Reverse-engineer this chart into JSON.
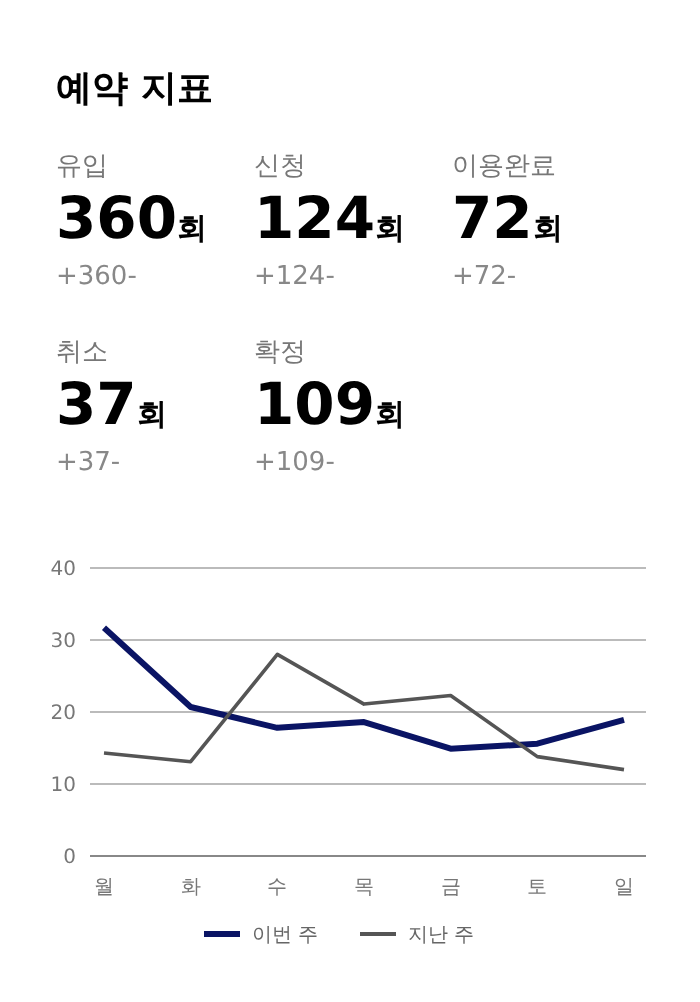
{
  "chart_data": [
    {
      "type": "other",
      "title": "예약 지표",
      "annotations": [
        "유입",
        "360회",
        "+360-",
        "신청",
        "124회",
        "+124-",
        "이용완료",
        "72회",
        "+72-",
        "취소",
        "37회",
        "+37-",
        "확정",
        "109회",
        "+109-"
      ]
    },
    {
      "type": "line",
      "categories": [
        "월",
        "화",
        "수",
        "목",
        "금",
        "토",
        "일"
      ],
      "ylim": [
        0,
        40
      ],
      "yticks": [
        0,
        10,
        20,
        30,
        40
      ],
      "grid": "y",
      "legend": "bottom",
      "marker": "none",
      "series": [
        {
          "name": "이번 주",
          "color": "#0a1464",
          "values": [
            31.7,
            20.7,
            17.8,
            18.6,
            14.9,
            15.6,
            18.9
          ]
        },
        {
          "name": "지난 주",
          "color": "#555555",
          "values": [
            14.3,
            13.1,
            28.0,
            21.1,
            22.3,
            13.8,
            12.0
          ]
        }
      ]
    }
  ]
}
